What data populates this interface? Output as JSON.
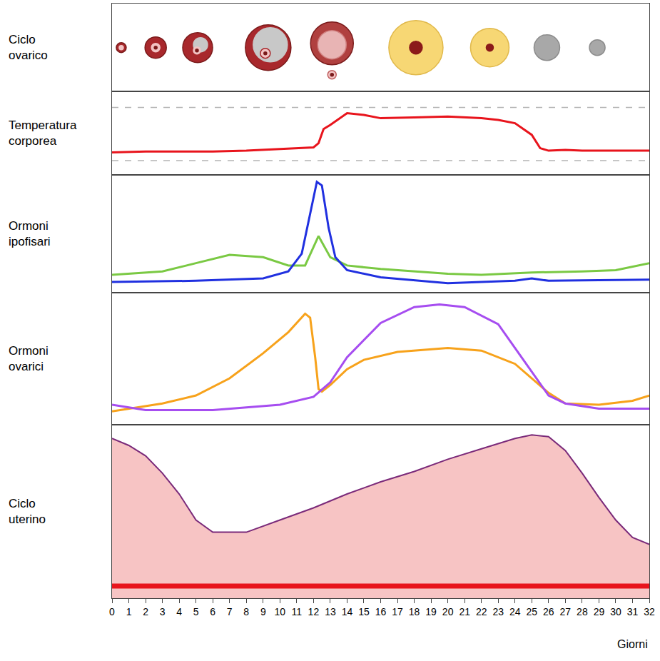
{
  "chart_data": [
    {
      "type": "illustration",
      "title": "Ciclo ovarico",
      "x": [
        0.55,
        2.6,
        5.1,
        9.3,
        13.1,
        18.1,
        22.5,
        25.9,
        28.9
      ],
      "xlim": [
        0,
        32
      ],
      "ylim": [
        0,
        100
      ],
      "tick_labels": false
    },
    {
      "type": "line",
      "title": "Temperatura corporea",
      "series": [
        {
          "color": "#e8141c",
          "x": [
            0,
            2,
            4,
            6,
            8,
            10,
            11,
            12,
            12.3,
            12.6,
            13,
            14,
            15,
            16,
            18,
            20,
            22,
            23,
            24,
            25,
            25.5,
            26,
            27,
            28,
            30,
            32
          ],
          "values": [
            27,
            28,
            28,
            28,
            29,
            31,
            32,
            33,
            38,
            55,
            60,
            74,
            72,
            68,
            69,
            70,
            68,
            66,
            62,
            48,
            32,
            29,
            30,
            29,
            29,
            29
          ]
        },
        {
          "color": "#b4b4b4",
          "line_style": "dashed",
          "x": [
            0,
            32
          ],
          "values": [
            81,
            81
          ]
        },
        {
          "color": "#b4b4b4",
          "line_style": "dashed",
          "x": [
            0,
            32
          ],
          "values": [
            17,
            17
          ]
        }
      ],
      "xlim": [
        0,
        32
      ],
      "ylim": [
        0,
        100
      ],
      "tick_labels": false
    },
    {
      "type": "line",
      "title": "Ormoni ipofisari",
      "series": [
        {
          "color": "#7ac943",
          "x": [
            0,
            3,
            5,
            7,
            9,
            10.5,
            11.5,
            12.3,
            13,
            14,
            16,
            20,
            22,
            25,
            28,
            30,
            32
          ],
          "values": [
            15,
            18,
            25,
            32,
            30,
            23,
            23,
            48,
            30,
            23,
            20,
            16,
            15,
            17,
            18,
            19,
            25
          ]
        },
        {
          "color": "#2030e0",
          "x": [
            0,
            5,
            9,
            10.5,
            11.3,
            11.8,
            12.2,
            12.5,
            12.9,
            13.3,
            14,
            16,
            20,
            24,
            25,
            26,
            32
          ],
          "values": [
            9,
            10,
            12,
            18,
            33,
            67,
            94,
            91,
            55,
            30,
            19,
            13,
            8,
            10,
            12,
            10,
            11
          ]
        }
      ],
      "xlim": [
        0,
        32
      ],
      "ylim": [
        0,
        100
      ],
      "tick_labels": false
    },
    {
      "type": "line",
      "title": "Ormoni ovarici",
      "series": [
        {
          "color": "#f7a21b",
          "x": [
            0,
            3,
            5,
            7,
            9,
            10.5,
            11.5,
            11.8,
            12.1,
            12.3,
            12.5,
            13,
            14,
            15,
            17,
            20,
            22,
            24,
            26,
            27,
            29,
            31,
            32
          ],
          "values": [
            10,
            16,
            22,
            35,
            54,
            70,
            84,
            81,
            51,
            27,
            25,
            30,
            42,
            49,
            55,
            58,
            56,
            46,
            24,
            16,
            15,
            18,
            22
          ]
        },
        {
          "color": "#a64df0",
          "x": [
            0,
            2,
            6,
            10,
            12,
            13,
            14,
            16,
            18,
            19.5,
            21,
            23,
            24.5,
            26,
            27,
            29,
            32
          ],
          "values": [
            15,
            11,
            11,
            15,
            21,
            32,
            51,
            77,
            89,
            91,
            89,
            76,
            49,
            22,
            16,
            12,
            12
          ]
        }
      ],
      "xlim": [
        0,
        32
      ],
      "ylim": [
        0,
        100
      ],
      "tick_labels": false
    },
    {
      "type": "area",
      "title": "Ciclo uterino",
      "xlabel": "Giorni",
      "series": [
        {
          "color": "#f7c4c4",
          "x": [
            0,
            1,
            2,
            3,
            4,
            5,
            6,
            8,
            10,
            12,
            14,
            16,
            18,
            20,
            22,
            24,
            25,
            26,
            27,
            28,
            29,
            30,
            31,
            32
          ],
          "values": [
            92,
            88,
            82,
            72,
            60,
            45,
            38,
            38,
            45,
            52,
            60,
            67,
            73,
            80,
            86,
            92,
            94,
            93,
            85,
            72,
            58,
            45,
            35,
            31
          ]
        },
        {
          "color": "#e8141c",
          "type": "line",
          "x": [
            0,
            32
          ],
          "values": [
            7,
            7
          ]
        }
      ],
      "xlim": [
        0,
        32
      ],
      "ylim": [
        0,
        100
      ],
      "xticks": [
        0,
        1,
        2,
        3,
        4,
        5,
        6,
        7,
        8,
        9,
        10,
        11,
        12,
        13,
        14,
        15,
        16,
        17,
        18,
        19,
        20,
        21,
        22,
        23,
        24,
        25,
        26,
        27,
        28,
        29,
        30,
        31,
        32
      ],
      "tick_labels": "x"
    }
  ]
}
